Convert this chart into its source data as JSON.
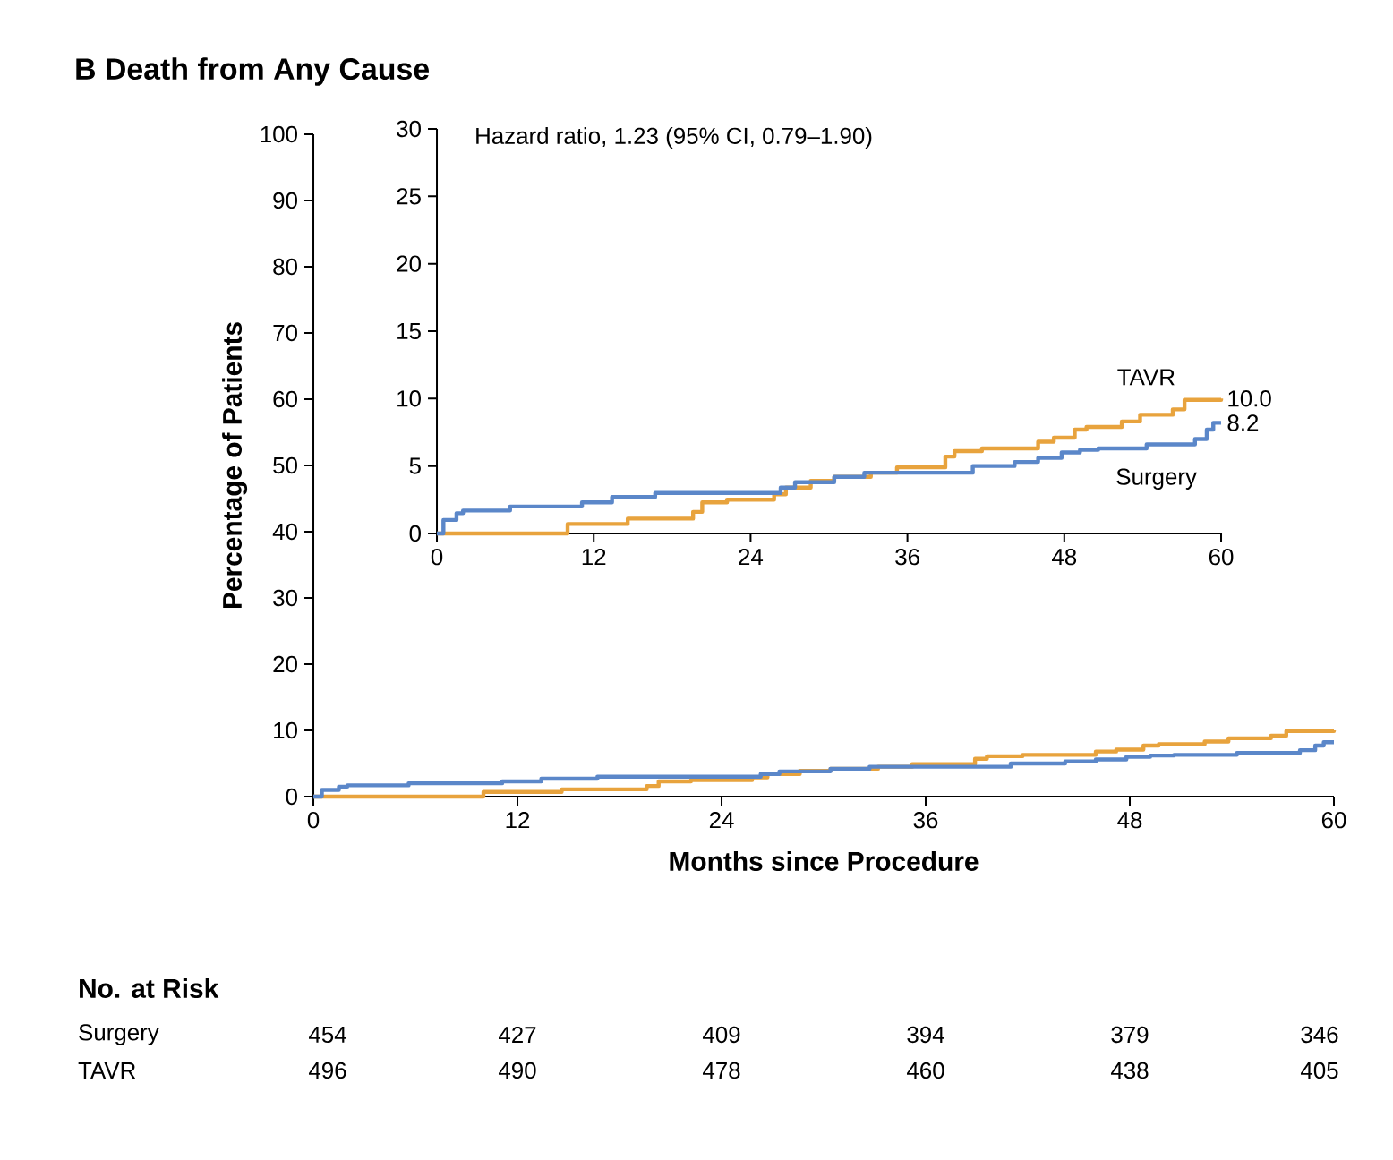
{
  "chart_data": [
    {
      "type": "step",
      "title": "B Death from Any Cause",
      "xlabel": "Months since Procedure",
      "ylabel": "Percentage of Patients",
      "xlim": [
        0,
        60
      ],
      "xticks": [
        0,
        12,
        24,
        36,
        48,
        60
      ],
      "ylim": [
        0,
        100
      ],
      "yticks": [
        0,
        10,
        20,
        30,
        40,
        50,
        60,
        70,
        80,
        90,
        100
      ],
      "series": [
        {
          "color": "#e8a33d",
          "x": [
            0,
            10,
            14.6,
            19.6,
            20.3,
            22.2,
            25.8,
            26.7,
            28.6,
            30.4,
            33.2,
            35.2,
            38.9,
            39.6,
            41.7,
            46,
            47.2,
            48.8,
            49.7,
            52.4,
            53.8,
            56.3,
            57.2,
            60
          ],
          "values": [
            0,
            0.7,
            1.1,
            1.6,
            2.3,
            2.5,
            2.9,
            3.4,
            3.9,
            4.2,
            4.5,
            4.9,
            5.7,
            6.1,
            6.3,
            6.8,
            7.1,
            7.7,
            7.9,
            8.3,
            8.8,
            9.2,
            9.9,
            10.0
          ]
        },
        {
          "color": "#5b87c9",
          "x": [
            0,
            0.5,
            1.5,
            2,
            5.6,
            11.1,
            13.4,
            16.7,
            26.3,
            27.4,
            30.4,
            32.7,
            41,
            44.2,
            46,
            47.8,
            49.2,
            50.6,
            54.3,
            58,
            58.9,
            59.4,
            60
          ],
          "values": [
            0,
            1.0,
            1.5,
            1.7,
            2.0,
            2.3,
            2.7,
            3.0,
            3.4,
            3.8,
            4.2,
            4.5,
            5.0,
            5.3,
            5.6,
            6.0,
            6.2,
            6.3,
            6.6,
            7.0,
            7.7,
            8.2,
            8.2
          ]
        }
      ],
      "annotations": [
        "No. at Risk",
        "Surgery",
        "454",
        "427",
        "409",
        "394",
        "379",
        "346",
        "TAVR",
        "496",
        "490",
        "478",
        "460",
        "438",
        "405"
      ]
    },
    {
      "type": "step",
      "xlim": [
        0,
        60
      ],
      "xticks": [
        0,
        12,
        24,
        36,
        48,
        60
      ],
      "ylim": [
        0,
        30
      ],
      "yticks": [
        0,
        5,
        10,
        15,
        20,
        25,
        30
      ],
      "series": [
        {
          "name": "TAVR",
          "color": "#e8a33d",
          "x": [
            0,
            10,
            14.6,
            19.6,
            20.3,
            22.2,
            25.8,
            26.7,
            28.6,
            30.4,
            33.2,
            35.2,
            38.9,
            39.6,
            41.7,
            46,
            47.2,
            48.8,
            49.7,
            52.4,
            53.8,
            56.3,
            57.2,
            60
          ],
          "values": [
            0,
            0.7,
            1.1,
            1.6,
            2.3,
            2.5,
            2.9,
            3.4,
            3.9,
            4.2,
            4.5,
            4.9,
            5.7,
            6.1,
            6.3,
            6.8,
            7.1,
            7.7,
            7.9,
            8.3,
            8.8,
            9.2,
            9.9,
            10.0
          ]
        },
        {
          "name": "Surgery",
          "color": "#5b87c9",
          "x": [
            0,
            0.5,
            1.5,
            2,
            5.6,
            11.1,
            13.4,
            16.7,
            26.3,
            27.4,
            30.4,
            32.7,
            41,
            44.2,
            46,
            47.8,
            49.2,
            50.6,
            54.3,
            58,
            58.9,
            59.4,
            60
          ],
          "values": [
            0,
            1.0,
            1.5,
            1.7,
            2.0,
            2.3,
            2.7,
            3.0,
            3.4,
            3.8,
            4.2,
            4.5,
            5.0,
            5.3,
            5.6,
            6.0,
            6.2,
            6.3,
            6.6,
            7.0,
            7.7,
            8.2,
            8.2
          ]
        }
      ],
      "annotations": [
        "Hazard ratio, 1.23 (95% CI, 0.79–1.90)",
        {
          "text": "10.0",
          "x": 60,
          "y": 10.0
        },
        {
          "text": "8.2",
          "x": 60,
          "y": 8.2
        }
      ]
    }
  ]
}
